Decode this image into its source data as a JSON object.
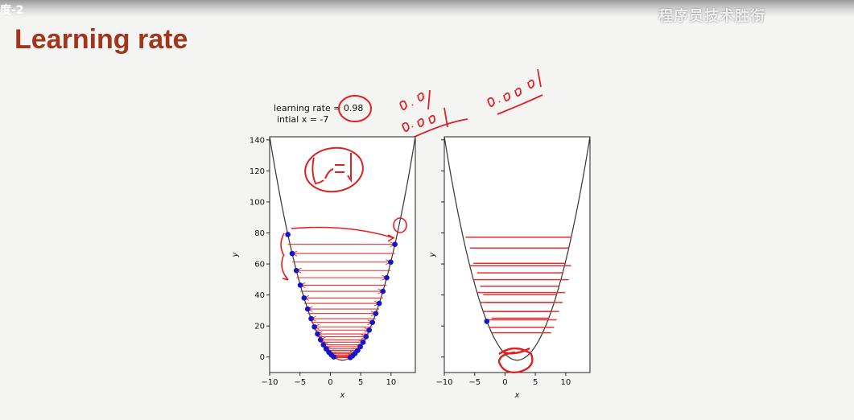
{
  "header": {
    "corner_label": "度-2",
    "watermark": "程序员技术胜衔"
  },
  "slide": {
    "title": "Learning rate"
  },
  "annotation_text": {
    "learning_rate": "learning rate = 0.98",
    "initial_x": "intial x = -7"
  },
  "colors": {
    "title": "#a2361a",
    "curve": "#333333",
    "steps": "#e53030",
    "points": "#1515c8",
    "ink": "#e02020"
  },
  "chart_data": [
    {
      "type": "line",
      "function": "y = (x - 2)^2 - 2",
      "learning_rate": 0.98,
      "initial_x": -7,
      "xlabel": "x",
      "ylabel": "y",
      "xlim": [
        -10,
        14
      ],
      "ylim": [
        -10,
        142
      ],
      "xticks": [
        -10,
        -5,
        0,
        5,
        10
      ],
      "yticks": [
        0,
        20,
        40,
        60,
        80,
        100,
        120,
        140
      ],
      "curve_x": [
        -10,
        -9,
        -8,
        -7,
        -6,
        -5,
        -4,
        -3,
        -2,
        -1,
        0,
        1,
        2,
        3,
        4,
        5,
        6,
        7,
        8,
        9,
        10,
        11,
        12,
        13,
        14
      ],
      "curve_y": [
        142,
        119,
        98,
        79,
        62,
        47,
        34,
        23,
        14,
        7,
        2,
        -1,
        -2,
        -1,
        2,
        7,
        14,
        23,
        34,
        47,
        62,
        79,
        98,
        119,
        142
      ],
      "descent_x": [
        -7,
        10.64,
        -6.29,
        9.95,
        -5.6,
        9.29,
        -4.95,
        8.66,
        -4.33,
        8.05,
        -3.74,
        7.48,
        -3.17,
        6.93,
        -2.63,
        6.4,
        -2.11,
        5.89,
        -1.62,
        5.4,
        -1.14,
        4.94,
        -0.69,
        4.5,
        -0.25,
        4.07,
        0.16,
        3.66,
        0.56,
        3.27
      ],
      "grid": false,
      "legend": "none"
    },
    {
      "type": "line",
      "function": "y = (x - 2)^2 - 2",
      "xlabel": "x",
      "ylabel": "y",
      "xlim": [
        -10,
        14
      ],
      "ylim": [
        -10,
        142
      ],
      "xticks": [
        -10,
        -5,
        0,
        5,
        10
      ],
      "yticks": [
        0,
        20,
        40,
        60,
        80,
        100,
        120,
        140
      ],
      "descent_x": [
        -6.5,
        10.9,
        -5.8,
        10.5,
        -5.2,
        9.9,
        -4.6,
        9.5,
        -4.1,
        8.9,
        -3.6,
        8.5,
        -3.1,
        8.1,
        -2.6,
        7.6,
        -2.2,
        7.2
      ],
      "marker_x": -3,
      "grid": false,
      "legend": "none"
    }
  ],
  "handwriting": [
    {
      "id": "circle-lr",
      "text": ""
    },
    {
      "id": "note-lr1",
      "text": "Lr=1"
    },
    {
      "id": "note-001",
      "text": "0.01"
    },
    {
      "id": "note-0001-a",
      "text": "0.001"
    },
    {
      "id": "note-0001-b",
      "text": "0.001"
    }
  ]
}
